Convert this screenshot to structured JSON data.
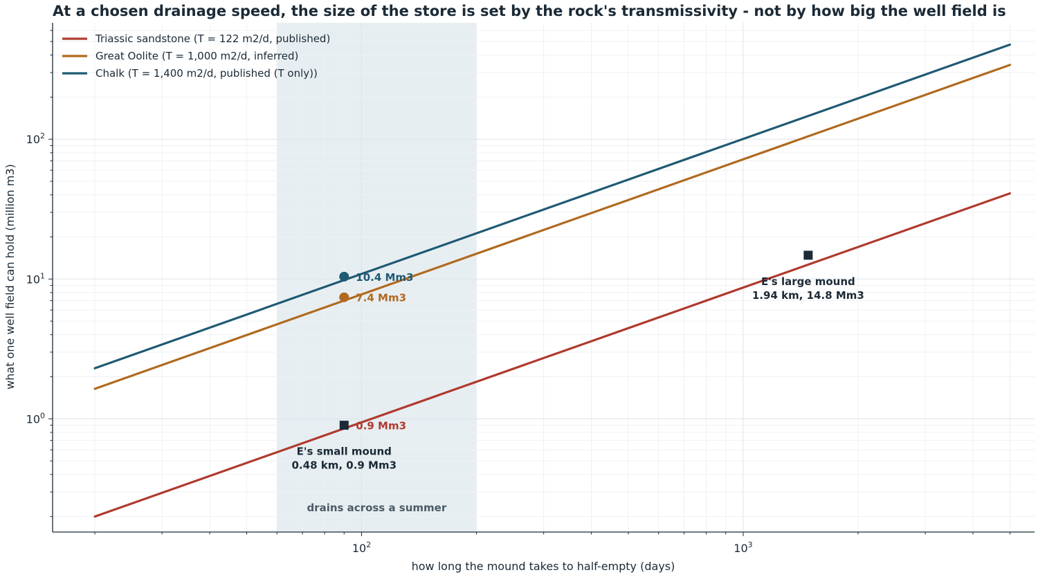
{
  "chart_data": {
    "type": "line",
    "title": "At a chosen drainage speed, the size of the store is set by the rock's transmissivity  -  not by how big the well field is",
    "xlabel": "how long the mound takes to half-empty (days)",
    "ylabel": "what one well field can hold (million m3)",
    "xscale": "log",
    "yscale": "log",
    "xlim": [
      15.5,
      5800
    ],
    "ylim": [
      0.155,
      680
    ],
    "x_ticks": [
      {
        "value": 100,
        "base": "10",
        "exp": "2"
      },
      {
        "value": 1000,
        "base": "10",
        "exp": "3"
      }
    ],
    "y_ticks": [
      {
        "value": 1,
        "base": "10",
        "exp": "0"
      },
      {
        "value": 10,
        "base": "10",
        "exp": "1"
      },
      {
        "value": 100,
        "base": "10",
        "exp": "2"
      }
    ],
    "grid": true,
    "legend_position": "top-left",
    "series": [
      {
        "name": "Triassic sandstone  (T = 122 m2/d, published)",
        "color": "#b03a2e",
        "x": [
          20,
          5000
        ],
        "y": [
          0.2,
          41
        ]
      },
      {
        "name": "Great Oolite  (T = 1,000 m2/d, inferred)",
        "color": "#b06a1f",
        "x": [
          20,
          5000
        ],
        "y": [
          1.64,
          340
        ]
      },
      {
        "name": "Chalk  (T = 1,400 m2/d, published (T only))",
        "color": "#1f5a73",
        "x": [
          20,
          5000
        ],
        "y": [
          2.3,
          475
        ]
      }
    ],
    "shaded_band": {
      "x": [
        60,
        200
      ],
      "label": "drains across a summer",
      "color": "#e7eef2",
      "label_color": "#4b5b66"
    },
    "point_labels": [
      {
        "x": 90,
        "y": 10.4,
        "marker": "circle",
        "color": "#1f5a73",
        "label": "10.4 Mm3"
      },
      {
        "x": 90,
        "y": 7.4,
        "marker": "circle",
        "color": "#b06a1f",
        "label": "7.4 Mm3"
      },
      {
        "x": 90,
        "y": 0.9,
        "marker": "square",
        "color": "#1b2a36",
        "label": "0.9 Mm3",
        "label_color": "#b03a2e"
      }
    ],
    "annotations": [
      {
        "x": 90,
        "y": 0.9,
        "lines": [
          "E's small mound",
          "0.48 km, 0.9 Mm3"
        ]
      },
      {
        "x": 1480,
        "y": 14.8,
        "marker": "square",
        "lines": [
          "E's large mound",
          "1.94 km, 14.8 Mm3"
        ]
      }
    ]
  }
}
